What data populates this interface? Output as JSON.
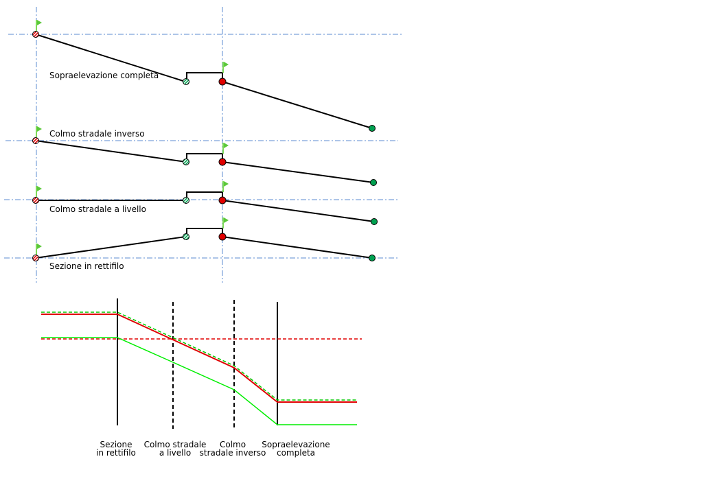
{
  "profiles": {
    "sopraelevazione": "Sopraelevazione completa",
    "colmo_inverso": "Colmo stradale inverso",
    "colmo_livello": "Colmo stradale a livello",
    "rettifilo": "Sezione in rettifilo"
  },
  "chart_labels": [
    {
      "line1": "Sezione",
      "line2": "in rettifilo"
    },
    {
      "line1": "Colmo stradale",
      "line2": "a livello"
    },
    {
      "line1": "Colmo",
      "line2": "stradale inverso"
    },
    {
      "line1": "Sopraelevazione",
      "line2": "completa"
    }
  ],
  "colors": {
    "axis": "#5b8bd0",
    "red": "#e00000",
    "green": "#00b050",
    "flag": "#7ed957",
    "bright_green": "#00ee00"
  }
}
